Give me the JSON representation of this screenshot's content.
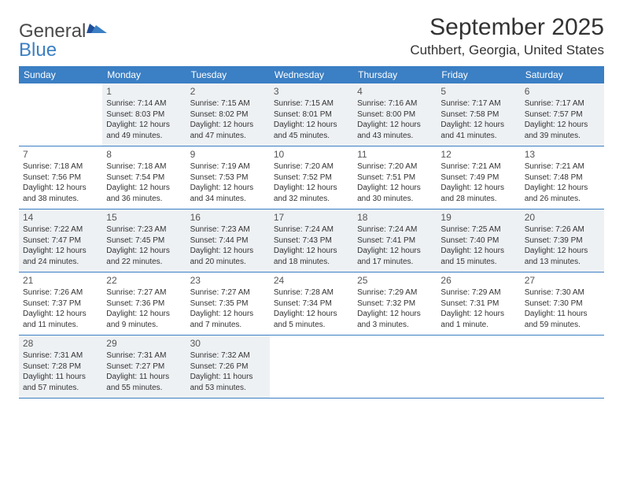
{
  "brand": {
    "word1": "General",
    "word2": "Blue"
  },
  "title": "September 2025",
  "location": "Cuthbert, Georgia, United States",
  "colors": {
    "header_bg": "#3b7fc4",
    "header_text": "#ffffff",
    "shaded_bg": "#eef1f4",
    "row_border": "#3b7fc4",
    "text": "#333333"
  },
  "dow": [
    "Sunday",
    "Monday",
    "Tuesday",
    "Wednesday",
    "Thursday",
    "Friday",
    "Saturday"
  ],
  "weeks": [
    {
      "shaded": true,
      "days": [
        null,
        {
          "n": "1",
          "sr": "7:14 AM",
          "ss": "8:03 PM",
          "dl": "12 hours and 49 minutes."
        },
        {
          "n": "2",
          "sr": "7:15 AM",
          "ss": "8:02 PM",
          "dl": "12 hours and 47 minutes."
        },
        {
          "n": "3",
          "sr": "7:15 AM",
          "ss": "8:01 PM",
          "dl": "12 hours and 45 minutes."
        },
        {
          "n": "4",
          "sr": "7:16 AM",
          "ss": "8:00 PM",
          "dl": "12 hours and 43 minutes."
        },
        {
          "n": "5",
          "sr": "7:17 AM",
          "ss": "7:58 PM",
          "dl": "12 hours and 41 minutes."
        },
        {
          "n": "6",
          "sr": "7:17 AM",
          "ss": "7:57 PM",
          "dl": "12 hours and 39 minutes."
        }
      ]
    },
    {
      "shaded": false,
      "days": [
        {
          "n": "7",
          "sr": "7:18 AM",
          "ss": "7:56 PM",
          "dl": "12 hours and 38 minutes."
        },
        {
          "n": "8",
          "sr": "7:18 AM",
          "ss": "7:54 PM",
          "dl": "12 hours and 36 minutes."
        },
        {
          "n": "9",
          "sr": "7:19 AM",
          "ss": "7:53 PM",
          "dl": "12 hours and 34 minutes."
        },
        {
          "n": "10",
          "sr": "7:20 AM",
          "ss": "7:52 PM",
          "dl": "12 hours and 32 minutes."
        },
        {
          "n": "11",
          "sr": "7:20 AM",
          "ss": "7:51 PM",
          "dl": "12 hours and 30 minutes."
        },
        {
          "n": "12",
          "sr": "7:21 AM",
          "ss": "7:49 PM",
          "dl": "12 hours and 28 minutes."
        },
        {
          "n": "13",
          "sr": "7:21 AM",
          "ss": "7:48 PM",
          "dl": "12 hours and 26 minutes."
        }
      ]
    },
    {
      "shaded": true,
      "days": [
        {
          "n": "14",
          "sr": "7:22 AM",
          "ss": "7:47 PM",
          "dl": "12 hours and 24 minutes."
        },
        {
          "n": "15",
          "sr": "7:23 AM",
          "ss": "7:45 PM",
          "dl": "12 hours and 22 minutes."
        },
        {
          "n": "16",
          "sr": "7:23 AM",
          "ss": "7:44 PM",
          "dl": "12 hours and 20 minutes."
        },
        {
          "n": "17",
          "sr": "7:24 AM",
          "ss": "7:43 PM",
          "dl": "12 hours and 18 minutes."
        },
        {
          "n": "18",
          "sr": "7:24 AM",
          "ss": "7:41 PM",
          "dl": "12 hours and 17 minutes."
        },
        {
          "n": "19",
          "sr": "7:25 AM",
          "ss": "7:40 PM",
          "dl": "12 hours and 15 minutes."
        },
        {
          "n": "20",
          "sr": "7:26 AM",
          "ss": "7:39 PM",
          "dl": "12 hours and 13 minutes."
        }
      ]
    },
    {
      "shaded": false,
      "days": [
        {
          "n": "21",
          "sr": "7:26 AM",
          "ss": "7:37 PM",
          "dl": "12 hours and 11 minutes."
        },
        {
          "n": "22",
          "sr": "7:27 AM",
          "ss": "7:36 PM",
          "dl": "12 hours and 9 minutes."
        },
        {
          "n": "23",
          "sr": "7:27 AM",
          "ss": "7:35 PM",
          "dl": "12 hours and 7 minutes."
        },
        {
          "n": "24",
          "sr": "7:28 AM",
          "ss": "7:34 PM",
          "dl": "12 hours and 5 minutes."
        },
        {
          "n": "25",
          "sr": "7:29 AM",
          "ss": "7:32 PM",
          "dl": "12 hours and 3 minutes."
        },
        {
          "n": "26",
          "sr": "7:29 AM",
          "ss": "7:31 PM",
          "dl": "12 hours and 1 minute."
        },
        {
          "n": "27",
          "sr": "7:30 AM",
          "ss": "7:30 PM",
          "dl": "11 hours and 59 minutes."
        }
      ]
    },
    {
      "shaded": true,
      "days": [
        {
          "n": "28",
          "sr": "7:31 AM",
          "ss": "7:28 PM",
          "dl": "11 hours and 57 minutes."
        },
        {
          "n": "29",
          "sr": "7:31 AM",
          "ss": "7:27 PM",
          "dl": "11 hours and 55 minutes."
        },
        {
          "n": "30",
          "sr": "7:32 AM",
          "ss": "7:26 PM",
          "dl": "11 hours and 53 minutes."
        },
        null,
        null,
        null,
        null
      ]
    }
  ],
  "labels": {
    "sunrise": "Sunrise:",
    "sunset": "Sunset:",
    "daylight": "Daylight:"
  }
}
